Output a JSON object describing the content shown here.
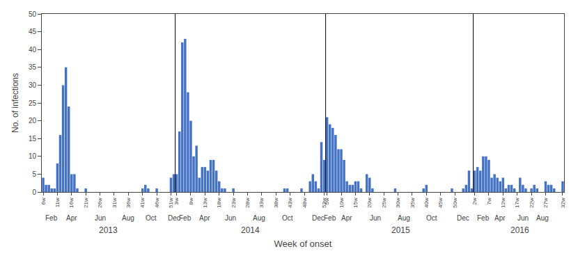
{
  "chart_data": {
    "type": "bar",
    "ylabel": "No. of infections",
    "xlabel": "Week of onset",
    "color": "#4472C4",
    "ylim": [
      0,
      50
    ],
    "yticks": [
      0,
      5,
      10,
      15,
      20,
      25,
      30,
      35,
      40,
      45,
      50
    ],
    "grid": false,
    "categories": [
      "6w",
      null,
      null,
      null,
      null,
      "11w",
      null,
      null,
      null,
      null,
      "16w",
      null,
      null,
      null,
      null,
      "21w",
      null,
      null,
      null,
      null,
      "26w",
      null,
      null,
      null,
      null,
      "31w",
      null,
      null,
      null,
      null,
      "36w",
      null,
      null,
      null,
      null,
      "41w",
      null,
      null,
      null,
      null,
      "46w",
      null,
      null,
      null,
      null,
      "51w",
      null,
      "3w",
      null,
      null,
      null,
      null,
      "8w",
      null,
      null,
      null,
      null,
      "13w",
      null,
      null,
      null,
      null,
      "18w",
      null,
      null,
      null,
      null,
      "23w",
      null,
      null,
      null,
      null,
      "28w",
      null,
      null,
      null,
      null,
      "33w",
      null,
      null,
      null,
      null,
      "38w",
      null,
      null,
      null,
      null,
      "43w",
      null,
      null,
      null,
      null,
      "48w",
      null,
      null,
      null,
      null,
      null,
      null,
      "53w",
      "5w",
      null,
      null,
      null,
      null,
      "10w",
      null,
      null,
      null,
      null,
      "15w",
      null,
      null,
      null,
      null,
      "20w",
      null,
      null,
      null,
      null,
      "25w",
      null,
      null,
      null,
      null,
      "30w",
      null,
      null,
      null,
      null,
      "35w",
      null,
      null,
      null,
      null,
      "40w",
      null,
      null,
      null,
      null,
      "45w",
      null,
      null,
      null,
      null,
      "50w",
      null,
      null,
      null,
      null,
      null,
      null,
      "2w",
      null,
      null,
      null,
      null,
      "7w",
      null,
      null,
      null,
      null,
      "12w",
      null,
      null,
      null,
      null,
      "17w",
      null,
      null,
      null,
      null,
      "22w",
      null,
      null,
      null,
      null,
      "27w",
      null,
      null,
      null,
      null,
      null,
      "32w"
    ],
    "values": [
      4,
      2,
      2,
      1,
      1,
      8,
      16,
      30,
      35,
      24,
      5,
      5,
      1,
      0,
      0,
      1,
      0,
      0,
      0,
      0,
      0,
      0,
      0,
      0,
      0,
      0,
      0,
      0,
      0,
      0,
      0,
      0,
      0,
      0,
      0,
      1,
      2,
      1,
      0,
      0,
      1,
      0,
      0,
      0,
      0,
      4,
      5,
      5,
      17,
      42,
      43,
      28,
      20,
      10,
      13,
      4,
      7,
      7,
      6,
      9,
      9,
      6,
      3,
      1,
      1,
      0,
      0,
      1,
      0,
      0,
      0,
      0,
      0,
      0,
      0,
      0,
      0,
      0,
      0,
      0,
      0,
      0,
      0,
      0,
      0,
      1,
      1,
      0,
      0,
      0,
      0,
      1,
      0,
      0,
      3,
      5,
      3,
      1,
      14,
      9,
      21,
      19,
      18,
      16,
      12,
      12,
      9,
      3,
      2,
      2,
      3,
      3,
      1,
      0,
      5,
      4,
      1,
      0,
      0,
      0,
      0,
      0,
      0,
      0,
      1,
      0,
      0,
      0,
      0,
      0,
      0,
      0,
      0,
      0,
      1,
      2,
      0,
      0,
      0,
      0,
      0,
      0,
      0,
      0,
      1,
      0,
      0,
      0,
      1,
      2,
      6,
      1,
      6,
      7,
      6,
      10,
      10,
      9,
      4,
      5,
      4,
      3,
      4,
      1,
      2,
      2,
      1,
      0,
      4,
      2,
      1,
      0,
      1,
      2,
      1,
      0,
      0,
      3,
      2,
      2,
      1,
      0,
      0,
      3
    ],
    "vlines": [
      46.5,
      99.5,
      151.5
    ],
    "month_labels": [
      {
        "x": 3,
        "text": "Feb"
      },
      {
        "x": 10,
        "text": "Apr"
      },
      {
        "x": 20,
        "text": "Jun"
      },
      {
        "x": 30,
        "text": "Aug"
      },
      {
        "x": 38,
        "text": "Oct"
      },
      {
        "x": 46,
        "text": "Dec"
      },
      {
        "x": 50,
        "text": "Feb"
      },
      {
        "x": 57,
        "text": "Apr"
      },
      {
        "x": 66,
        "text": "Jun"
      },
      {
        "x": 76,
        "text": "Aug"
      },
      {
        "x": 86,
        "text": "Oct"
      },
      {
        "x": 97,
        "text": "Dec"
      },
      {
        "x": 101,
        "text": "Feb"
      },
      {
        "x": 107,
        "text": "Apr"
      },
      {
        "x": 117,
        "text": "Jun"
      },
      {
        "x": 127,
        "text": "Aug"
      },
      {
        "x": 137,
        "text": "Oct"
      },
      {
        "x": 148,
        "text": "Dec"
      },
      {
        "x": 155,
        "text": "Feb"
      },
      {
        "x": 161,
        "text": "Apr"
      },
      {
        "x": 169,
        "text": "Jun"
      },
      {
        "x": 176,
        "text": "Aug"
      }
    ],
    "year_labels": [
      {
        "x": 23,
        "text": "2013"
      },
      {
        "x": 73,
        "text": "2014"
      },
      {
        "x": 126,
        "text": "2015"
      },
      {
        "x": 168,
        "text": "2016"
      }
    ]
  }
}
